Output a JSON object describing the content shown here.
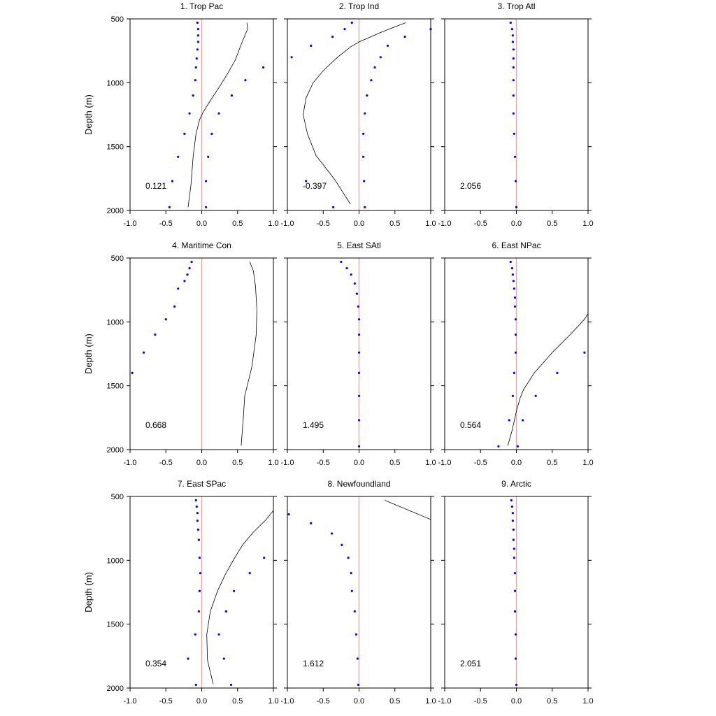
{
  "figure": {
    "ylabel": "Depth (m)"
  },
  "style": {
    "zero_line_color": "#ff9999",
    "point_color": "#0000ff",
    "curve_color": "#000000"
  },
  "chart_data": [
    {
      "type": "scatter",
      "title": "1. Trop Pac",
      "annotation": "0.121",
      "xlim": [
        -1.0,
        1.0
      ],
      "ylim": [
        500,
        2000
      ],
      "y_inverted": true,
      "xticks": [
        "-1.0",
        "-0.5",
        "0.0",
        "0.5",
        "1.0"
      ],
      "yticks": [
        "500",
        "1000",
        "1500",
        "2000"
      ],
      "series": [
        {
          "kind": "points",
          "points": [
            [
              -0.06,
              530
            ],
            [
              -0.05,
              580
            ],
            [
              -0.05,
              630
            ],
            [
              -0.05,
              680
            ],
            [
              -0.06,
              740
            ],
            [
              -0.07,
              810
            ],
            [
              -0.08,
              880
            ],
            [
              -0.09,
              980
            ],
            [
              -0.12,
              1100
            ],
            [
              -0.17,
              1240
            ],
            [
              -0.24,
              1400
            ],
            [
              -0.33,
              1580
            ],
            [
              -0.41,
              1770
            ],
            [
              -0.45,
              1975
            ],
            [
              0.06,
              1975
            ],
            [
              0.06,
              1770
            ],
            [
              0.09,
              1580
            ],
            [
              0.14,
              1400
            ],
            [
              0.24,
              1240
            ],
            [
              0.42,
              1100
            ],
            [
              0.61,
              980
            ],
            [
              0.86,
              880
            ]
          ]
        },
        {
          "kind": "curve",
          "points": [
            [
              0.63,
              530
            ],
            [
              0.64,
              580
            ],
            [
              0.55,
              700
            ],
            [
              0.47,
              820
            ],
            [
              0.37,
              920
            ],
            [
              0.25,
              1030
            ],
            [
              0.12,
              1140
            ],
            [
              0.02,
              1230
            ],
            [
              -0.03,
              1290
            ],
            [
              -0.08,
              1400
            ],
            [
              -0.12,
              1580
            ],
            [
              -0.15,
              1800
            ],
            [
              -0.19,
              1975
            ]
          ]
        }
      ]
    },
    {
      "type": "scatter",
      "title": "2. Trop Ind",
      "annotation": "-0.397",
      "xlim": [
        -1.0,
        1.0
      ],
      "ylim": [
        500,
        2000
      ],
      "y_inverted": true,
      "xticks": [
        "-1.0",
        "-0.5",
        "0.0",
        "0.5",
        "1.0"
      ],
      "yticks": [
        "500",
        "1000",
        "1500",
        "2000"
      ],
      "series": [
        {
          "kind": "points",
          "points": [
            [
              -0.1,
              530
            ],
            [
              -0.2,
              580
            ],
            [
              -0.37,
              640
            ],
            [
              -0.67,
              710
            ],
            [
              -0.94,
              800
            ],
            [
              1.0,
              580
            ],
            [
              0.64,
              640
            ],
            [
              0.4,
              710
            ],
            [
              0.3,
              800
            ],
            [
              0.22,
              880
            ],
            [
              0.17,
              980
            ],
            [
              0.11,
              1100
            ],
            [
              0.08,
              1240
            ],
            [
              0.06,
              1400
            ],
            [
              0.06,
              1580
            ],
            [
              0.07,
              1770
            ],
            [
              0.08,
              1975
            ],
            [
              -0.36,
              1975
            ],
            [
              -0.74,
              1770
            ]
          ]
        },
        {
          "kind": "curve",
          "points": [
            [
              0.65,
              530
            ],
            [
              0.33,
              600
            ],
            [
              0.0,
              680
            ],
            [
              -0.12,
              720
            ],
            [
              -0.3,
              800
            ],
            [
              -0.49,
              900
            ],
            [
              -0.64,
              1000
            ],
            [
              -0.74,
              1120
            ],
            [
              -0.78,
              1250
            ],
            [
              -0.72,
              1400
            ],
            [
              -0.6,
              1570
            ],
            [
              -0.35,
              1750
            ],
            [
              -0.12,
              1950
            ]
          ]
        }
      ]
    },
    {
      "type": "scatter",
      "title": "3. Trop Atl",
      "annotation": "2.056",
      "xlim": [
        -1.0,
        1.0
      ],
      "ylim": [
        500,
        2000
      ],
      "y_inverted": true,
      "xticks": [
        "-1.0",
        "-0.5",
        "0.0",
        "0.5",
        "1.0"
      ],
      "yticks": [
        "500",
        "1000",
        "1500",
        "2000"
      ],
      "series": [
        {
          "kind": "points",
          "points": [
            [
              -0.08,
              530
            ],
            [
              -0.06,
              580
            ],
            [
              -0.05,
              630
            ],
            [
              -0.05,
              680
            ],
            [
              -0.04,
              740
            ],
            [
              -0.04,
              810
            ],
            [
              -0.04,
              880
            ],
            [
              -0.04,
              980
            ],
            [
              -0.04,
              1100
            ],
            [
              -0.04,
              1240
            ],
            [
              -0.03,
              1400
            ],
            [
              -0.02,
              1580
            ],
            [
              -0.01,
              1770
            ],
            [
              0.0,
              1975
            ]
          ]
        }
      ]
    },
    {
      "type": "scatter",
      "title": "4. Maritime Con",
      "annotation": "0.668",
      "xlim": [
        -1.0,
        1.0
      ],
      "ylim": [
        500,
        2000
      ],
      "y_inverted": true,
      "xticks": [
        "-1.0",
        "-0.5",
        "0.0",
        "0.5",
        "1.0"
      ],
      "yticks": [
        "500",
        "1000",
        "1500",
        "2000"
      ],
      "series": [
        {
          "kind": "points",
          "points": [
            [
              -0.14,
              530
            ],
            [
              -0.17,
              580
            ],
            [
              -0.2,
              630
            ],
            [
              -0.24,
              680
            ],
            [
              -0.33,
              740
            ],
            [
              -0.38,
              880
            ],
            [
              -0.5,
              980
            ],
            [
              -0.65,
              1100
            ],
            [
              -0.81,
              1240
            ],
            [
              -0.97,
              1400
            ]
          ]
        },
        {
          "kind": "curve",
          "points": [
            [
              0.67,
              530
            ],
            [
              0.72,
              600
            ],
            [
              0.75,
              720
            ],
            [
              0.77,
              900
            ],
            [
              0.76,
              1100
            ],
            [
              0.7,
              1350
            ],
            [
              0.6,
              1580
            ],
            [
              0.58,
              1750
            ],
            [
              0.55,
              1970
            ]
          ]
        }
      ]
    },
    {
      "type": "scatter",
      "title": "5. East SAtl",
      "annotation": "1.495",
      "xlim": [
        -1.0,
        1.0
      ],
      "ylim": [
        500,
        2000
      ],
      "y_inverted": true,
      "xticks": [
        "-1.0",
        "-0.5",
        "0.0",
        "0.5",
        "1.0"
      ],
      "yticks": [
        "500",
        "1000",
        "1500",
        "2000"
      ],
      "series": [
        {
          "kind": "points",
          "points": [
            [
              -0.25,
              530
            ],
            [
              -0.17,
              580
            ],
            [
              -0.11,
              630
            ],
            [
              -0.06,
              700
            ],
            [
              -0.03,
              780
            ],
            [
              -0.01,
              880
            ],
            [
              0.0,
              980
            ],
            [
              0.0,
              1100
            ],
            [
              0.0,
              1240
            ],
            [
              0.0,
              1400
            ],
            [
              0.0,
              1580
            ],
            [
              0.0,
              1770
            ],
            [
              0.0,
              1975
            ]
          ]
        }
      ]
    },
    {
      "type": "scatter",
      "title": "6. East NPac",
      "annotation": "0.564",
      "xlim": [
        -1.0,
        1.0
      ],
      "ylim": [
        500,
        2000
      ],
      "y_inverted": true,
      "xticks": [
        "-1.0",
        "-0.5",
        "0.0",
        "0.5",
        "1.0"
      ],
      "yticks": [
        "500",
        "1000",
        "1500",
        "2000"
      ],
      "series": [
        {
          "kind": "points",
          "points": [
            [
              -0.08,
              530
            ],
            [
              -0.06,
              580
            ],
            [
              -0.05,
              630
            ],
            [
              -0.04,
              680
            ],
            [
              -0.03,
              740
            ],
            [
              -0.02,
              810
            ],
            [
              -0.02,
              880
            ],
            [
              -0.01,
              980
            ],
            [
              -0.01,
              1100
            ],
            [
              -0.01,
              1240
            ],
            [
              -0.03,
              1400
            ],
            [
              -0.05,
              1580
            ],
            [
              -0.1,
              1770
            ],
            [
              -0.25,
              1975
            ],
            [
              0.02,
              1975
            ],
            [
              0.09,
              1770
            ],
            [
              0.27,
              1580
            ],
            [
              0.57,
              1400
            ],
            [
              0.95,
              1240
            ]
          ]
        },
        {
          "kind": "curve",
          "points": [
            [
              1.0,
              935
            ],
            [
              0.95,
              980
            ],
            [
              0.75,
              1100
            ],
            [
              0.5,
              1240
            ],
            [
              0.25,
              1400
            ],
            [
              0.1,
              1530
            ],
            [
              0.05,
              1600
            ],
            [
              0.0,
              1700
            ],
            [
              -0.06,
              1850
            ],
            [
              -0.12,
              1970
            ]
          ]
        }
      ]
    },
    {
      "type": "scatter",
      "title": "7. East SPac",
      "annotation": "0.354",
      "xlim": [
        -1.0,
        1.0
      ],
      "ylim": [
        500,
        2000
      ],
      "y_inverted": true,
      "xticks": [
        "-1.0",
        "-0.5",
        "0.0",
        "0.5",
        "1.0"
      ],
      "yticks": [
        "500",
        "1000",
        "1500",
        "2000"
      ],
      "series": [
        {
          "kind": "points",
          "points": [
            [
              -0.08,
              530
            ],
            [
              -0.07,
              580
            ],
            [
              -0.06,
              630
            ],
            [
              -0.06,
              690
            ],
            [
              -0.05,
              760
            ],
            [
              -0.04,
              840
            ],
            [
              -0.03,
              980
            ],
            [
              -0.02,
              1100
            ],
            [
              -0.03,
              1240
            ],
            [
              -0.04,
              1400
            ],
            [
              -0.09,
              1580
            ],
            [
              -0.19,
              1770
            ],
            [
              -0.08,
              1975
            ],
            [
              0.41,
              1975
            ],
            [
              0.31,
              1770
            ],
            [
              0.24,
              1580
            ],
            [
              0.34,
              1400
            ],
            [
              0.45,
              1240
            ],
            [
              0.67,
              1100
            ],
            [
              0.87,
              980
            ]
          ]
        },
        {
          "kind": "curve",
          "points": [
            [
              1.0,
              610
            ],
            [
              0.9,
              680
            ],
            [
              0.72,
              780
            ],
            [
              0.57,
              880
            ],
            [
              0.45,
              990
            ],
            [
              0.33,
              1110
            ],
            [
              0.22,
              1240
            ],
            [
              0.12,
              1400
            ],
            [
              0.07,
              1580
            ],
            [
              0.08,
              1780
            ],
            [
              0.16,
              1970
            ]
          ]
        }
      ]
    },
    {
      "type": "scatter",
      "title": "8. Newfoundland",
      "annotation": "1.612",
      "xlim": [
        -1.0,
        1.0
      ],
      "ylim": [
        500,
        2000
      ],
      "y_inverted": true,
      "xticks": [
        "-1.0",
        "-0.5",
        "0.0",
        "0.5",
        "1.0"
      ],
      "yticks": [
        "500",
        "1000",
        "1500",
        "2000"
      ],
      "series": [
        {
          "kind": "points",
          "points": [
            [
              -0.98,
              640
            ],
            [
              -0.67,
              710
            ],
            [
              -0.38,
              790
            ],
            [
              -0.24,
              880
            ],
            [
              -0.15,
              980
            ],
            [
              -0.11,
              1100
            ],
            [
              -0.1,
              1240
            ],
            [
              -0.06,
              1400
            ],
            [
              -0.04,
              1580
            ],
            [
              -0.02,
              1770
            ],
            [
              -0.01,
              1975
            ]
          ]
        },
        {
          "kind": "curve",
          "points": [
            [
              0.36,
              530
            ],
            [
              1.0,
              680
            ]
          ]
        }
      ]
    },
    {
      "type": "scatter",
      "title": "9. Arctic",
      "annotation": "2.051",
      "xlim": [
        -1.0,
        1.0
      ],
      "ylim": [
        500,
        2000
      ],
      "y_inverted": true,
      "xticks": [
        "-1.0",
        "-0.5",
        "0.0",
        "0.5",
        "1.0"
      ],
      "yticks": [
        "500",
        "1000",
        "1500",
        "2000"
      ],
      "series": [
        {
          "kind": "points",
          "points": [
            [
              -0.07,
              530
            ],
            [
              -0.06,
              580
            ],
            [
              -0.05,
              630
            ],
            [
              -0.05,
              690
            ],
            [
              -0.04,
              760
            ],
            [
              -0.04,
              840
            ],
            [
              -0.03,
              910
            ],
            [
              -0.03,
              980
            ],
            [
              -0.02,
              1100
            ],
            [
              -0.02,
              1240
            ],
            [
              -0.02,
              1400
            ],
            [
              -0.01,
              1580
            ],
            [
              -0.01,
              1770
            ],
            [
              0.0,
              1975
            ]
          ]
        }
      ]
    }
  ]
}
